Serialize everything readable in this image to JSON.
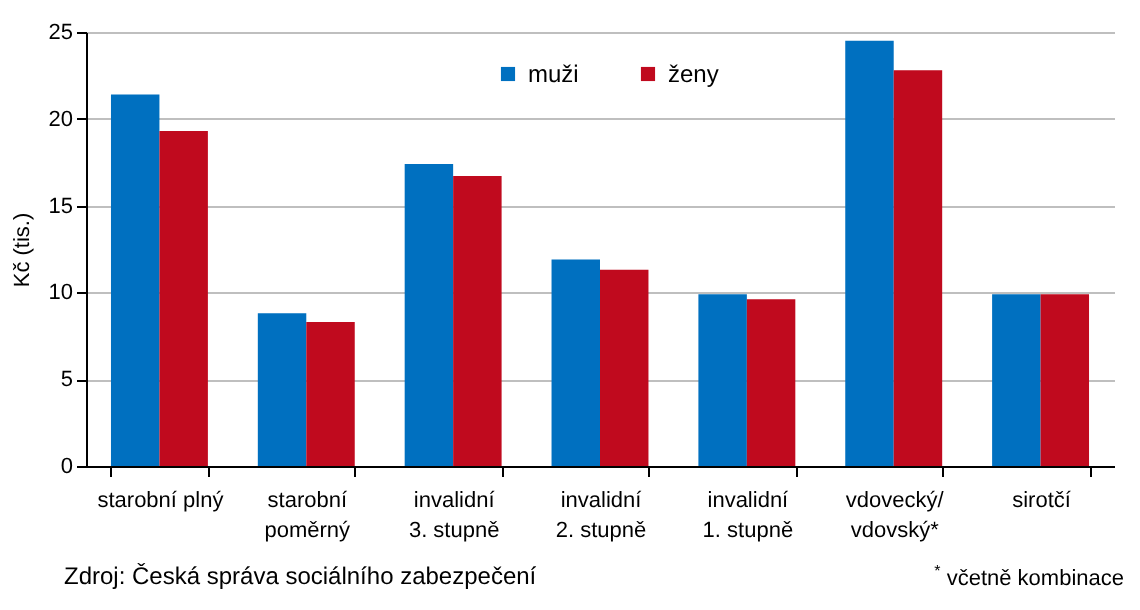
{
  "chart_data": {
    "type": "bar",
    "ylabel": "Kč (tis.)",
    "categories": [
      "starobní plný",
      "starobní\npoměrný",
      "invalidní\n3. stupně",
      "invalidní\n2. stupně",
      "invalidní\n1. stupně",
      "vdovecký/\nvdovský*",
      "sirotčí"
    ],
    "series": [
      {
        "name": "muži",
        "color": "#0070c0",
        "values": [
          21.4,
          8.8,
          17.4,
          11.9,
          9.9,
          24.5,
          9.9
        ]
      },
      {
        "name": "ženy",
        "color": "#c00a1e",
        "values": [
          19.3,
          8.3,
          16.7,
          11.3,
          9.6,
          22.8,
          9.9
        ]
      }
    ],
    "ylim": [
      0,
      25
    ],
    "yticks": [
      0,
      5,
      10,
      15,
      20,
      25
    ],
    "grid": "y",
    "legend": "top",
    "annotations": [
      "Zdroj: Česká správa sociálního zabezpečení",
      "$^{*}$ včetně kombinace"
    ]
  }
}
